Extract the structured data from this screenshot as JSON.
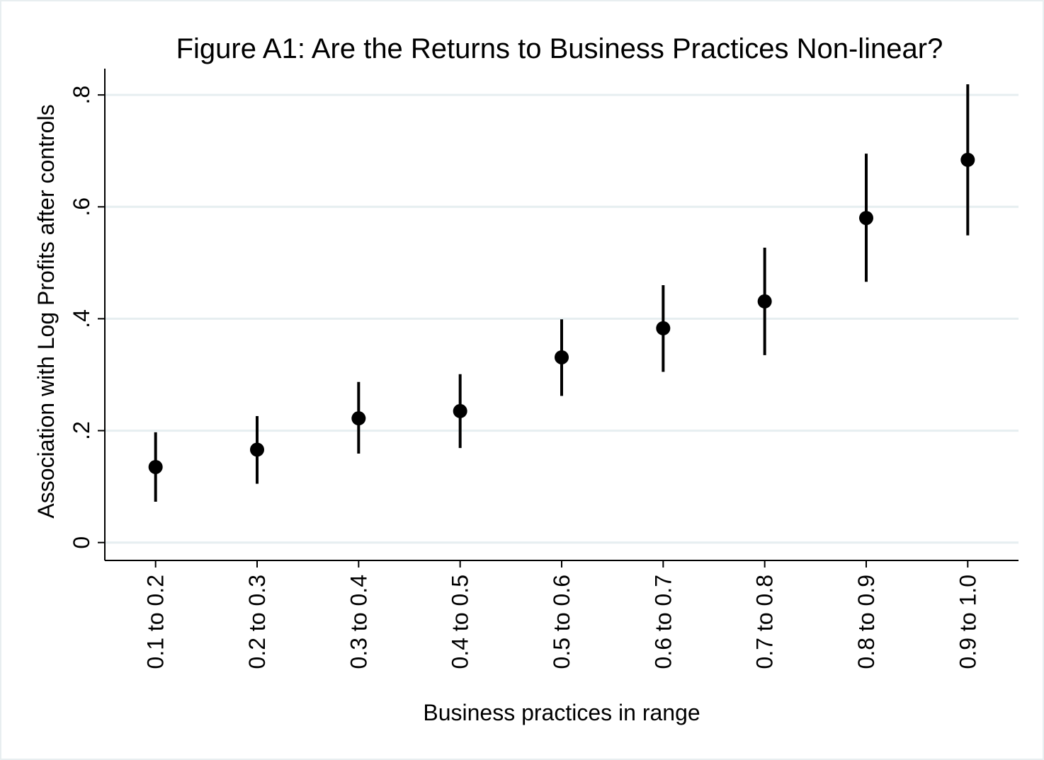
{
  "chart_data": {
    "type": "errorbar",
    "title": "Figure A1: Are the Returns to Business Practices Non-linear?",
    "x_label": "Business practices in range",
    "y_label": "Association with Log Profits after controls",
    "categories": [
      "0.1 to 0.2",
      "0.2 to 0.3",
      "0.3 to 0.4",
      "0.4 to 0.5",
      "0.5 to 0.6",
      "0.6 to 0.7",
      "0.7 to 0.8",
      "0.8 to 0.9",
      "0.9 to 1.0"
    ],
    "values": [
      0.135,
      0.166,
      0.222,
      0.235,
      0.331,
      0.383,
      0.431,
      0.58,
      0.684
    ],
    "lower": [
      0.073,
      0.105,
      0.159,
      0.169,
      0.262,
      0.305,
      0.335,
      0.466,
      0.549
    ],
    "upper": [
      0.197,
      0.226,
      0.287,
      0.301,
      0.399,
      0.46,
      0.527,
      0.695,
      0.819
    ],
    "color": "#000000",
    "ylim": [
      -0.032,
      0.847
    ],
    "yticks": [
      0,
      {
        "value": 0.2,
        "label": ".2"
      },
      {
        "value": 0.4,
        "label": ".4"
      },
      {
        "value": 0.6,
        "label": ".6"
      },
      {
        "value": 0.8,
        "label": ".8"
      }
    ],
    "grid": true
  }
}
